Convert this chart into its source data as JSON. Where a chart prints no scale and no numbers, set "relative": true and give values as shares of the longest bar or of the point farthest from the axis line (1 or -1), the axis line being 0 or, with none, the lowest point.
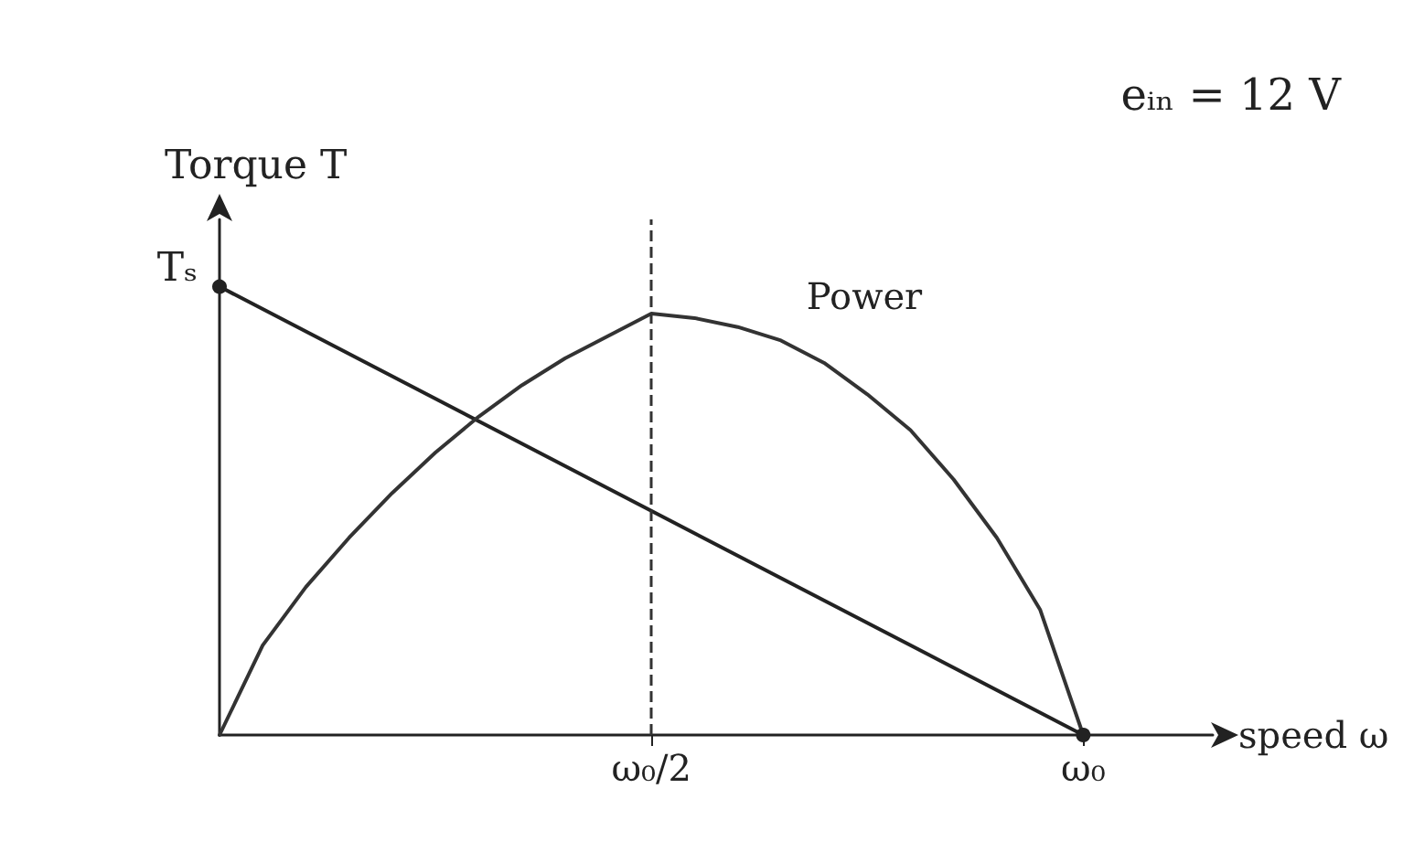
{
  "chart_data": {
    "type": "line",
    "relative": true,
    "ylabel": "Torque T",
    "xlabel": "speed ω",
    "grid": false,
    "legend": false,
    "categories": [
      null,
      null,
      null,
      null,
      null,
      null,
      null,
      null,
      null,
      null,
      "ω₀/2",
      null,
      null,
      null,
      null,
      null,
      null,
      null,
      null,
      null,
      "ω₀",
      null,
      null,
      null
    ],
    "series": [
      {
        "color": "#222222",
        "marker": "circle",
        "values": [
          1,
          null,
          null,
          null,
          null,
          null,
          null,
          null,
          null,
          null,
          null,
          null,
          null,
          null,
          null,
          null,
          null,
          null,
          null,
          null,
          0,
          null,
          null,
          null
        ]
      },
      {
        "name": "Power",
        "color": "#333333",
        "marker": "none",
        "values": [
          0,
          0.2,
          0.33,
          0.44,
          0.54,
          0.63,
          0.71,
          0.78,
          0.84,
          0.89,
          0.94,
          0.93,
          0.91,
          0.88,
          0.83,
          0.76,
          0.68,
          0.57,
          0.44,
          0.28,
          0,
          null,
          null,
          null
        ]
      }
    ],
    "ref_lines": [
      {
        "axis": "x",
        "value": "ω₀/2",
        "line_style": "dashed",
        "color": "#333333"
      }
    ],
    "annotations": [
      "Tₛ",
      "eᵢₙ = 12 V"
    ]
  }
}
